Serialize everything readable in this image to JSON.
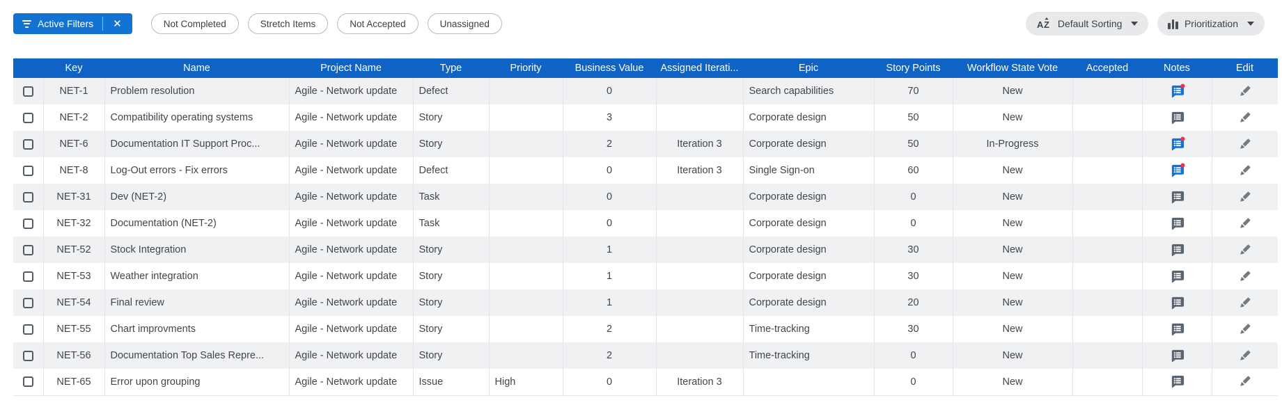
{
  "filters_bar": {
    "active_filters_label": "Active Filters",
    "chips": [
      "Not Completed",
      "Stretch Items",
      "Not Accepted",
      "Unassigned"
    ],
    "sorting_label": "Default Sorting",
    "prioritization_label": "Prioritization"
  },
  "icons": {
    "filter": "funnel-lines",
    "clear_filters": "✕",
    "sort_alphabetical": "AZ",
    "prioritization": "vertical-bars",
    "dropdown": "chevron-down",
    "notes": "speech-bubble-list",
    "edit": "pencil"
  },
  "colors": {
    "header_blue": "#0f63c5",
    "button_blue": "#1273d2",
    "row_alt_gray": "#f0f1f3",
    "notes_unread_blue": "#1273d2",
    "notes_read_gray": "#5b6572",
    "unread_dot_red": "#f5304d",
    "pill_gray": "#e8e9ea"
  },
  "table": {
    "columns": [
      "Key",
      "Name",
      "Project Name",
      "Type",
      "Priority",
      "Business Value",
      "Assigned Iterati...",
      "Epic",
      "Story Points",
      "Workflow State Vote",
      "Accepted",
      "Notes",
      "Edit"
    ],
    "rows": [
      {
        "key": "NET-1",
        "name": "Problem resolution",
        "project": "Agile - Network update",
        "type": "Defect",
        "priority": "",
        "business_value": "0",
        "iteration": "",
        "epic": "Search capabilities",
        "story_points": "70",
        "workflow_state": "New",
        "accepted": "",
        "notes_unread": true
      },
      {
        "key": "NET-2",
        "name": "Compatibility operating systems",
        "project": "Agile - Network update",
        "type": "Story",
        "priority": "",
        "business_value": "3",
        "iteration": "",
        "epic": "Corporate design",
        "story_points": "50",
        "workflow_state": "New",
        "accepted": "",
        "notes_unread": false
      },
      {
        "key": "NET-6",
        "name": "Documentation IT Support Proc...",
        "project": "Agile - Network update",
        "type": "Story",
        "priority": "",
        "business_value": "2",
        "iteration": "Iteration 3",
        "epic": "Corporate design",
        "story_points": "50",
        "workflow_state": "In-Progress",
        "accepted": "",
        "notes_unread": true
      },
      {
        "key": "NET-8",
        "name": "Log-Out errors - Fix errors",
        "project": "Agile - Network update",
        "type": "Defect",
        "priority": "",
        "business_value": "0",
        "iteration": "Iteration 3",
        "epic": "Single Sign-on",
        "story_points": "60",
        "workflow_state": "New",
        "accepted": "",
        "notes_unread": true
      },
      {
        "key": "NET-31",
        "name": "Dev (NET-2)",
        "project": "Agile - Network update",
        "type": "Task",
        "priority": "",
        "business_value": "0",
        "iteration": "",
        "epic": "Corporate design",
        "story_points": "0",
        "workflow_state": "New",
        "accepted": "",
        "notes_unread": false
      },
      {
        "key": "NET-32",
        "name": "Documentation (NET-2)",
        "project": "Agile - Network update",
        "type": "Task",
        "priority": "",
        "business_value": "0",
        "iteration": "",
        "epic": "Corporate design",
        "story_points": "0",
        "workflow_state": "New",
        "accepted": "",
        "notes_unread": false
      },
      {
        "key": "NET-52",
        "name": "Stock Integration",
        "project": "Agile - Network update",
        "type": "Story",
        "priority": "",
        "business_value": "1",
        "iteration": "",
        "epic": "Corporate design",
        "story_points": "30",
        "workflow_state": "New",
        "accepted": "",
        "notes_unread": false
      },
      {
        "key": "NET-53",
        "name": "Weather integration",
        "project": "Agile - Network update",
        "type": "Story",
        "priority": "",
        "business_value": "1",
        "iteration": "",
        "epic": "Corporate design",
        "story_points": "30",
        "workflow_state": "New",
        "accepted": "",
        "notes_unread": false
      },
      {
        "key": "NET-54",
        "name": "Final review",
        "project": "Agile - Network update",
        "type": "Story",
        "priority": "",
        "business_value": "1",
        "iteration": "",
        "epic": "Corporate design",
        "story_points": "20",
        "workflow_state": "New",
        "accepted": "",
        "notes_unread": false
      },
      {
        "key": "NET-55",
        "name": "Chart improvments",
        "project": "Agile - Network update",
        "type": "Story",
        "priority": "",
        "business_value": "2",
        "iteration": "",
        "epic": "Time-tracking",
        "story_points": "30",
        "workflow_state": "New",
        "accepted": "",
        "notes_unread": false
      },
      {
        "key": "NET-56",
        "name": "Documentation Top Sales Repre...",
        "project": "Agile - Network update",
        "type": "Story",
        "priority": "",
        "business_value": "2",
        "iteration": "",
        "epic": "Time-tracking",
        "story_points": "0",
        "workflow_state": "New",
        "accepted": "",
        "notes_unread": false
      },
      {
        "key": "NET-65",
        "name": "Error upon grouping",
        "project": "Agile - Network update",
        "type": "Issue",
        "priority": "High",
        "business_value": "0",
        "iteration": "Iteration 3",
        "epic": "",
        "story_points": "0",
        "workflow_state": "New",
        "accepted": "",
        "notes_unread": false
      }
    ]
  }
}
